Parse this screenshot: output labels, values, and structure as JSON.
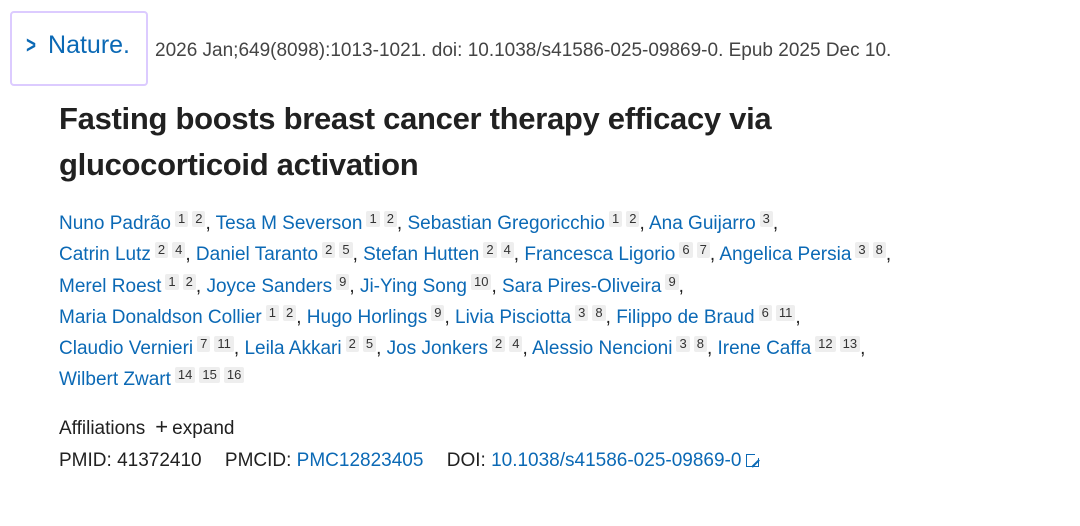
{
  "citation": {
    "journal": "Nature.",
    "details": "2026 Jan;649(8098):1013-1021. doi: 10.1038/s41586-025-09869-0. Epub 2025 Dec 10."
  },
  "title": "Fasting boosts breast cancer therapy efficacy via glucocorticoid activation",
  "authors": [
    {
      "name": "Nuno Padrão",
      "affs": [
        "1",
        "2"
      ]
    },
    {
      "name": "Tesa M Severson",
      "affs": [
        "1",
        "2"
      ]
    },
    {
      "name": "Sebastian Gregoricchio",
      "affs": [
        "1",
        "2"
      ]
    },
    {
      "name": "Ana Guijarro",
      "affs": [
        "3"
      ]
    },
    {
      "name": "Catrin Lutz",
      "affs": [
        "2",
        "4"
      ]
    },
    {
      "name": "Daniel Taranto",
      "affs": [
        "2",
        "5"
      ]
    },
    {
      "name": "Stefan Hutten",
      "affs": [
        "2",
        "4"
      ]
    },
    {
      "name": "Francesca Ligorio",
      "affs": [
        "6",
        "7"
      ]
    },
    {
      "name": "Angelica Persia",
      "affs": [
        "3",
        "8"
      ]
    },
    {
      "name": "Merel Roest",
      "affs": [
        "1",
        "2"
      ]
    },
    {
      "name": "Joyce Sanders",
      "affs": [
        "9"
      ]
    },
    {
      "name": "Ji-Ying Song",
      "affs": [
        "10"
      ]
    },
    {
      "name": "Sara Pires-Oliveira",
      "affs": [
        "9"
      ]
    },
    {
      "name": "Maria Donaldson Collier",
      "affs": [
        "1",
        "2"
      ]
    },
    {
      "name": "Hugo Horlings",
      "affs": [
        "9"
      ]
    },
    {
      "name": "Livia Pisciotta",
      "affs": [
        "3",
        "8"
      ]
    },
    {
      "name": "Filippo de Braud",
      "affs": [
        "6",
        "11"
      ]
    },
    {
      "name": "Claudio Vernieri",
      "affs": [
        "7",
        "11"
      ]
    },
    {
      "name": "Leila Akkari",
      "affs": [
        "2",
        "5"
      ]
    },
    {
      "name": "Jos Jonkers",
      "affs": [
        "2",
        "4"
      ]
    },
    {
      "name": "Alessio Nencioni",
      "affs": [
        "3",
        "8"
      ]
    },
    {
      "name": "Irene Caffa",
      "affs": [
        "12",
        "13"
      ]
    },
    {
      "name": "Wilbert Zwart",
      "affs": [
        "14",
        "15",
        "16"
      ]
    }
  ],
  "affiliations": {
    "label": "Affiliations",
    "expand": "expand",
    "icon": "plus-icon"
  },
  "identifiers": {
    "pmid_label": "PMID:",
    "pmid": "41372410",
    "pmcid_label": "PMCID:",
    "pmcid": "PMC12823405",
    "doi_label": "DOI:",
    "doi": "10.1038/s41586-025-09869-0",
    "doi_icon": "external-link-icon"
  },
  "colors": {
    "link": "#0b69b5",
    "focus_outline": "#dccbff"
  }
}
